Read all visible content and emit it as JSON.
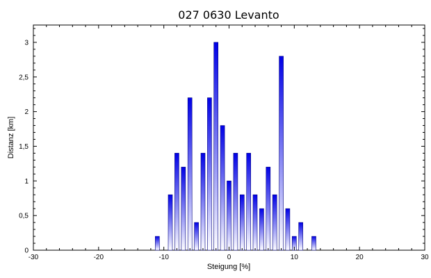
{
  "chart_data": {
    "type": "bar",
    "title": "027 0630 Levanto",
    "xlabel": "Steigung [%]",
    "ylabel": "Distanz [km]",
    "xlim": [
      -30,
      30
    ],
    "ylim": [
      0,
      3.25
    ],
    "xticks": [
      -30,
      -20,
      -10,
      0,
      10,
      20,
      30
    ],
    "xtick_labels": [
      "-30",
      "-20",
      "-10",
      "0",
      "10",
      "20",
      "30"
    ],
    "yticks": [
      0,
      0.5,
      1,
      1.5,
      2,
      2.5,
      3
    ],
    "ytick_labels": [
      "0",
      "0,5",
      "1",
      "1,5",
      "2",
      "2,5",
      "3"
    ],
    "grid": false,
    "x": [
      -11,
      -9,
      -8,
      -7,
      -6,
      -5,
      -4,
      -3,
      -2,
      -1,
      0,
      1,
      2,
      3,
      4,
      5,
      6,
      7,
      8,
      9,
      10,
      11,
      13
    ],
    "values": [
      0.2,
      0.8,
      1.4,
      1.2,
      2.2,
      0.4,
      1.4,
      2.2,
      3.0,
      1.8,
      1.0,
      1.4,
      0.8,
      1.4,
      0.8,
      0.6,
      1.2,
      0.8,
      2.8,
      0.6,
      0.2,
      0.4,
      0.2
    ],
    "colors": {
      "bar_top": "#0000e6",
      "bar_bottom": "#ffffff",
      "bar_edge": "#000080",
      "axis": "#000000"
    }
  }
}
